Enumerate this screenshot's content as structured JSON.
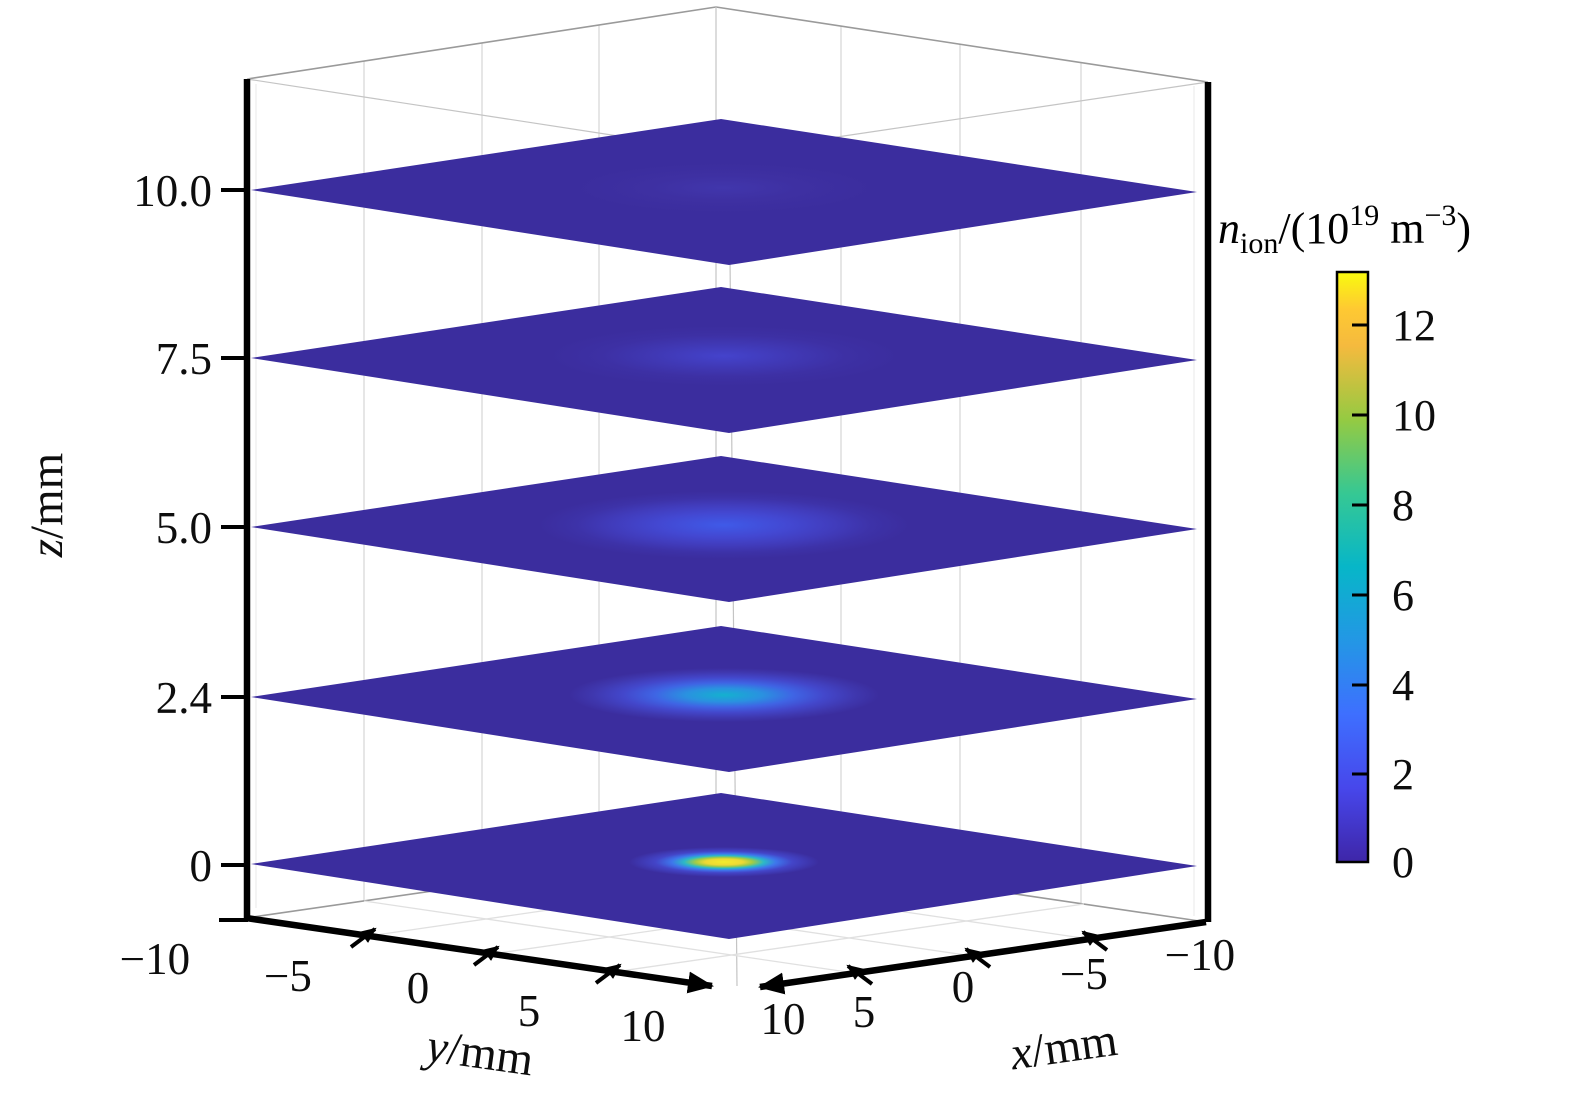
{
  "chart_data": {
    "type": "heatmap",
    "subtype": "3d-stacked-contour-slices",
    "title": "",
    "colorbar_label": "n_ion/(10^19 m^-3)",
    "colormap": "parula",
    "x_axis": {
      "label": "x/mm",
      "range": [
        -10,
        10
      ],
      "ticks": [
        10,
        5,
        0,
        -5,
        -10
      ]
    },
    "y_axis": {
      "label": "y/mm",
      "range": [
        -10,
        10
      ],
      "ticks": [
        -10,
        -5,
        0,
        5,
        10
      ]
    },
    "z_axis": {
      "label": "z/mm",
      "slice_positions_mm": [
        0,
        2.4,
        5.0,
        7.5,
        10.0
      ]
    },
    "colorbar": {
      "range": [
        0,
        13.2
      ],
      "ticks": [
        0,
        2,
        4,
        6,
        8,
        10,
        12
      ]
    },
    "slices": [
      {
        "z_mm": 0.0,
        "peak_density_1e19_m3": 13.0,
        "note": "small intense elongated spot at x=y=0, yellow core ~1.5 mm wide with green/cyan/blue halo"
      },
      {
        "z_mm": 2.4,
        "peak_density_1e19_m3": 5.0,
        "note": "broader elongated cyan-blue blob, ~4 mm halo radius"
      },
      {
        "z_mm": 5.0,
        "peak_density_1e19_m3": 2.5,
        "note": "diffuse bright-blue blob, ~5 mm radius"
      },
      {
        "z_mm": 7.5,
        "peak_density_1e19_m3": 1.2,
        "note": "faint blue-violet blob, ~5 mm radius"
      },
      {
        "z_mm": 10.0,
        "peak_density_1e19_m3": 0.4,
        "note": "nearly uniform background with very faint irregular patch"
      }
    ]
  },
  "axes": {
    "z": {
      "label_var": "z",
      "label_unit": "/mm",
      "tick_labels": [
        "10.0",
        "7.5",
        "5.0",
        "2.4",
        "0"
      ]
    },
    "y": {
      "label_var": "y",
      "label_unit": "/mm",
      "tick_labels": [
        "−10",
        "−5",
        "0",
        "5",
        "10"
      ]
    },
    "x": {
      "label_var": "x",
      "label_unit": "/mm",
      "tick_labels": [
        "10",
        "5",
        "0",
        "−5",
        "−10"
      ]
    }
  },
  "colorbar": {
    "title": {
      "n": "n",
      "sub": "ion",
      "open": "/(10",
      "exp": "19",
      "unit": " m",
      "sup": "−3",
      "close": ")"
    },
    "tick_labels": [
      "12",
      "10",
      "8",
      "6",
      "4",
      "2",
      "0"
    ]
  },
  "render": {
    "background": "#ffffff",
    "slice_bg": "#3B2D9E",
    "colorbar_stops": [
      {
        "o": 0.0,
        "c": "#3E26A8"
      },
      {
        "o": 0.125,
        "c": "#4747EB"
      },
      {
        "o": 0.25,
        "c": "#3E6FFF"
      },
      {
        "o": 0.375,
        "c": "#2397E5"
      },
      {
        "o": 0.5,
        "c": "#07B6C8"
      },
      {
        "o": 0.625,
        "c": "#36C893"
      },
      {
        "o": 0.75,
        "c": "#95CA42"
      },
      {
        "o": 0.875,
        "c": "#F5BA3E"
      },
      {
        "o": 0.9375,
        "c": "#FEC932"
      },
      {
        "o": 1.0,
        "c": "#F9FB0E"
      }
    ],
    "blobs": [
      {
        "z": "10.0",
        "stops": [
          {
            "o": 0,
            "c": "#4136AC"
          },
          {
            "o": 0.5,
            "c": "#3E30A2"
          },
          {
            "o": 1,
            "c": "#3B2D9E"
          }
        ]
      },
      {
        "z": "7.5",
        "stops": [
          {
            "o": 0,
            "c": "#4443CC"
          },
          {
            "o": 0.4,
            "c": "#4038B4"
          },
          {
            "o": 0.7,
            "c": "#3D30A4"
          },
          {
            "o": 1,
            "c": "#3B2D9E"
          }
        ]
      },
      {
        "z": "5.0",
        "stops": [
          {
            "o": 0,
            "c": "#3F5AE8"
          },
          {
            "o": 0.35,
            "c": "#4348D2"
          },
          {
            "o": 0.6,
            "c": "#413CBC"
          },
          {
            "o": 0.8,
            "c": "#3D32A8"
          },
          {
            "o": 1,
            "c": "#3B2D9E"
          }
        ]
      },
      {
        "z": "2.4",
        "stops": [
          {
            "o": 0,
            "c": "#14B1CF"
          },
          {
            "o": 0.25,
            "c": "#2A91E0"
          },
          {
            "o": 0.45,
            "c": "#3F64E4"
          },
          {
            "o": 0.65,
            "c": "#4347CB"
          },
          {
            "o": 0.85,
            "c": "#3F37AE"
          },
          {
            "o": 1,
            "c": "#3B2D9E"
          }
        ]
      },
      {
        "z": "0",
        "stops": [
          {
            "o": 0,
            "c": "#F4ED2C"
          },
          {
            "o": 0.2,
            "c": "#EDD935"
          },
          {
            "o": 0.3,
            "c": "#A3CC45"
          },
          {
            "o": 0.42,
            "c": "#2CB9C7"
          },
          {
            "o": 0.55,
            "c": "#3E76EC"
          },
          {
            "o": 0.72,
            "c": "#4345C8"
          },
          {
            "o": 1,
            "c": "#3B2D9E"
          }
        ]
      }
    ]
  }
}
